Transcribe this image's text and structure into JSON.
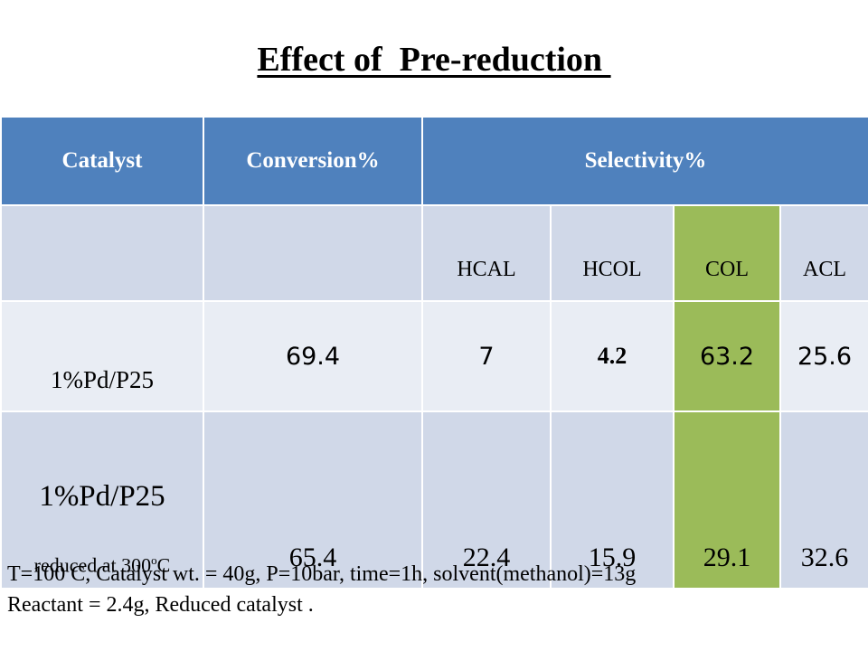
{
  "title": "Effect of  Pre-reduction ",
  "table": {
    "header": {
      "catalyst": "Catalyst",
      "conversion": "Conversion%",
      "selectivity": "Selectivity%"
    },
    "subheader": {
      "cat": "",
      "conv": "",
      "cols": [
        "HCAL",
        "HCOL",
        "COL",
        "ACL"
      ]
    },
    "rows": [
      {
        "catalyst": "1%Pd/P25",
        "conversion": "69.4",
        "values": [
          "7",
          "4.2",
          "63.2",
          "25.6"
        ]
      },
      {
        "catalyst": "1%Pd/P25",
        "note_prefix": "reduced at 300",
        "note_sup": "o",
        "note_suffix": "C",
        "conversion": "65.4",
        "values": [
          "22.4",
          "15.9",
          "29.1",
          "32.6"
        ]
      }
    ]
  },
  "footnote": {
    "line1": "T=100 C, Catalyst wt. = 40g, P=10bar, time=1h,  solvent(methanol)=13g",
    "line2": "Reactant = 2.4g,  Reduced catalyst  ."
  }
}
